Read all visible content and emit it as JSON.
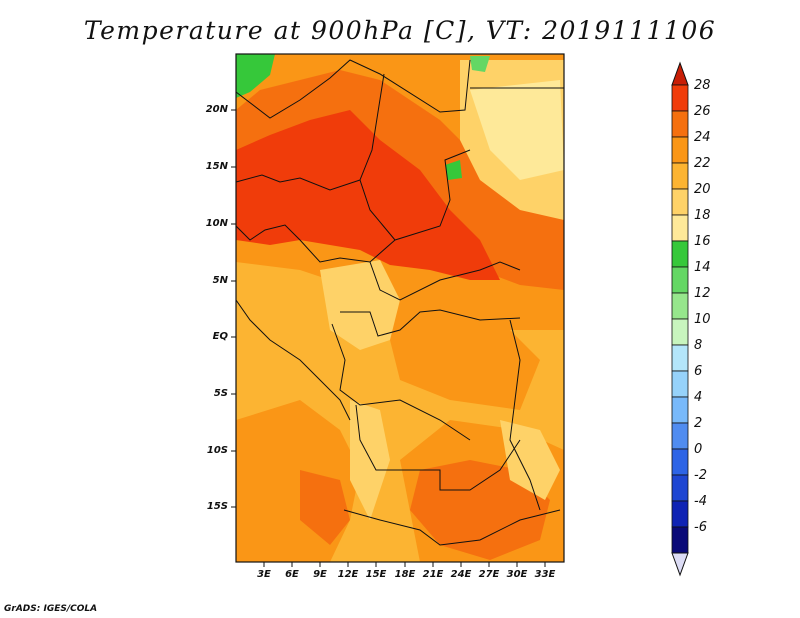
{
  "title": "Temperature at 900hPa [C], VT: 2019111106",
  "footer": "GrADS: IGES/COLA",
  "map": {
    "y_ticks": [
      "20N",
      "15N",
      "10N",
      "5N",
      "EQ",
      "5S",
      "10S",
      "15S"
    ],
    "x_ticks": [
      "3E",
      "6E",
      "9E",
      "12E",
      "15E",
      "18E",
      "21E",
      "24E",
      "27E",
      "30E",
      "33E"
    ]
  },
  "colorbar": {
    "labels": [
      "28",
      "26",
      "24",
      "22",
      "20",
      "18",
      "16",
      "14",
      "12",
      "10",
      "8",
      "6",
      "4",
      "2",
      "0",
      "-2",
      "-4",
      "-6"
    ],
    "colors": [
      "#c81e06",
      "#f03c0a",
      "#f5700f",
      "#fa9616",
      "#fcb432",
      "#fed268",
      "#fee999",
      "#36c83a",
      "#64d764",
      "#96e68c",
      "#c8f5be",
      "#b4e6fa",
      "#96d2fa",
      "#78b9fa",
      "#508cf0",
      "#2d64e6",
      "#1e46d2",
      "#0f23b4",
      "#0a0a78",
      "#dcdcf5"
    ]
  },
  "colors": {
    "base": "#fcb432",
    "warm1": "#fa9616",
    "warm2": "#f5700f",
    "hot": "#f03c0a",
    "pale": "#fed268",
    "paler": "#fee999",
    "green": "#36c83a",
    "lightgreen": "#64d764"
  }
}
